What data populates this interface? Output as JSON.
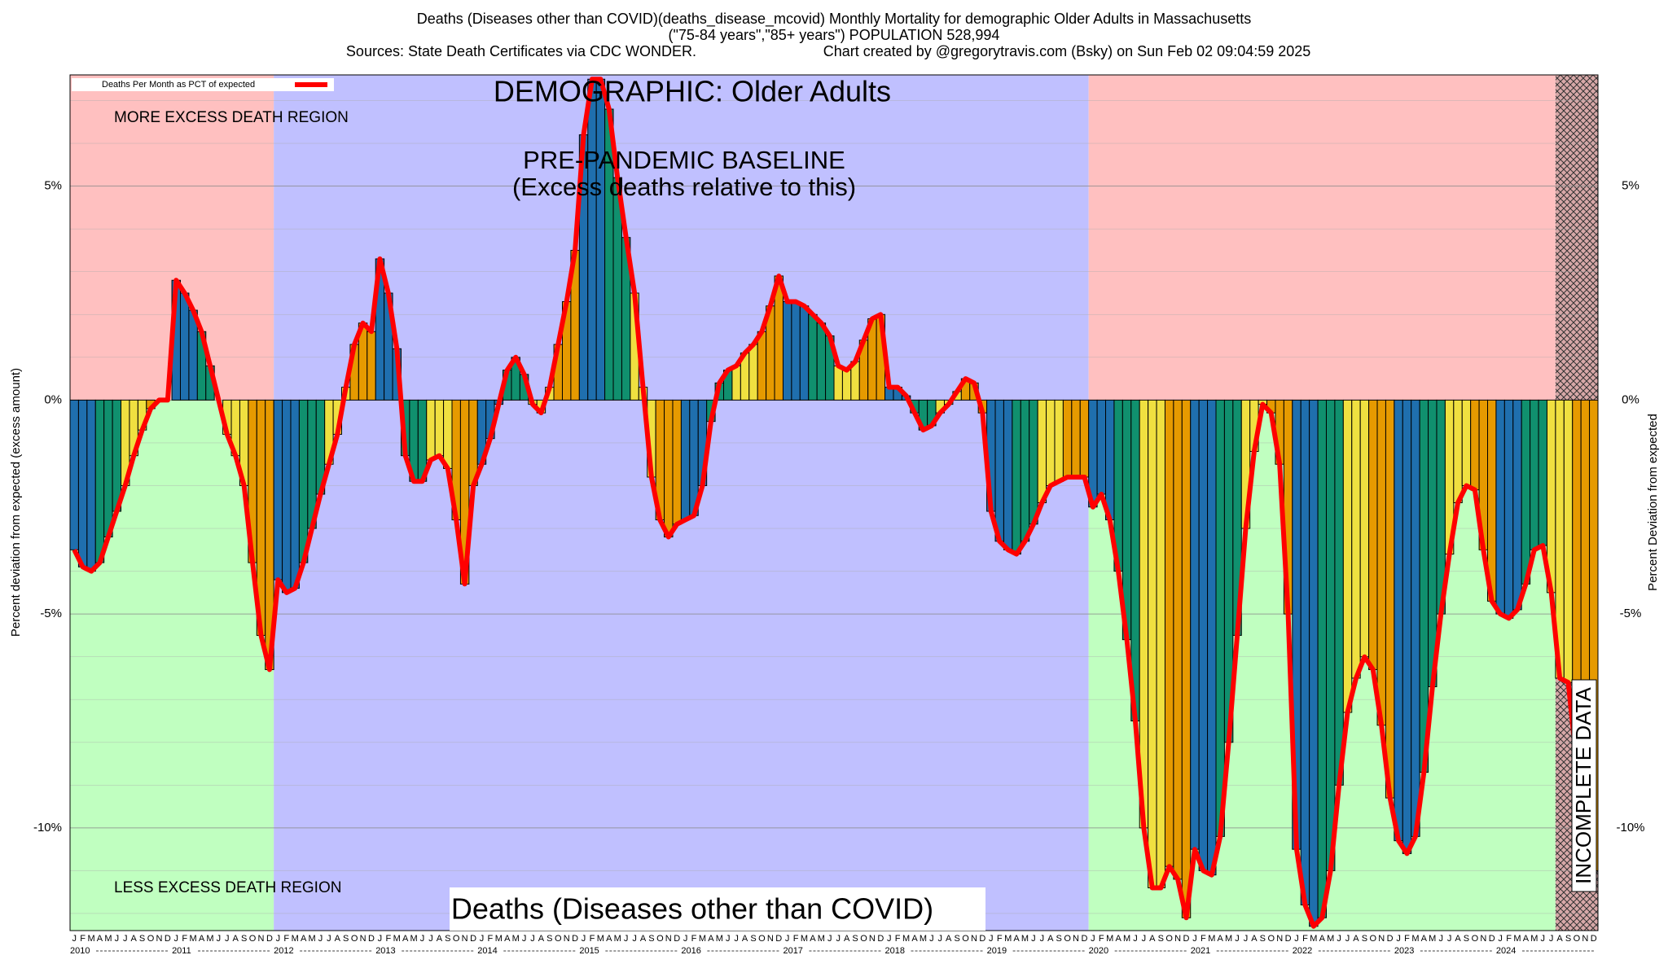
{
  "chart_data": {
    "type": "bar",
    "title": "Deaths (Diseases other than COVID)(deaths_disease_mcovid) Monthly Mortality for demographic Older Adults in Massachusetts",
    "subtitle": "(\"75-84 years\",\"85+ years\") POPULATION 528,994",
    "sources": "Sources: State Death Certificates via CDC WONDER.",
    "credit": "Chart created by @gregorytravis.com (Bsky) on Sun Feb 02 09:04:59 2025",
    "demographic": "DEMOGRAPHIC: Older Adults",
    "baseline_label": "PRE-PANDEMIC BASELINE",
    "baseline_note": "(Excess deaths relative to this)",
    "more_region": "MORE EXCESS DEATH REGION",
    "less_region": "LESS EXCESS DEATH REGION",
    "cause_label": "Deaths (Diseases other than COVID)",
    "incomplete_label": "INCOMPLETE DATA",
    "y_label": "Percent deviation from expected (excess amount)",
    "y2_label": "Percent Deviation from expected",
    "month_labels": [
      "J",
      "F",
      "M",
      "A",
      "M",
      "J",
      "J",
      "A",
      "S",
      "O",
      "N",
      "D"
    ],
    "years": [
      "2010",
      "2011",
      "2012",
      "2013",
      "2014",
      "2015",
      "2016",
      "2017",
      "2018",
      "2019",
      "2020",
      "2021",
      "2022",
      "2023",
      "2024"
    ],
    "bar_colors": [
      "#1f6fae",
      "#10906e",
      "#f0e040",
      "#e69a00"
    ],
    "series": [
      {
        "name": "Deaths Per Month as PCT of expected",
        "color": "#ff0000",
        "values": [
          -3.5,
          -3.9,
          -4.0,
          -3.8,
          -3.2,
          -2.6,
          -2.0,
          -1.3,
          -0.7,
          -0.2,
          0.0,
          0.0,
          2.8,
          2.5,
          2.1,
          1.6,
          0.8,
          0.0,
          -0.8,
          -1.3,
          -2.0,
          -3.8,
          -5.5,
          -6.3,
          -4.2,
          -4.5,
          -4.4,
          -3.8,
          -3.0,
          -2.2,
          -1.5,
          -0.8,
          0.3,
          1.3,
          1.8,
          1.6,
          3.3,
          2.5,
          1.2,
          -1.3,
          -1.9,
          -1.9,
          -1.4,
          -1.3,
          -1.6,
          -2.8,
          -4.3,
          -2.0,
          -1.5,
          -0.9,
          -0.1,
          0.7,
          1.0,
          0.6,
          -0.1,
          -0.3,
          0.3,
          1.3,
          2.3,
          3.5,
          6.2,
          7.5,
          7.5,
          6.8,
          5.2,
          3.8,
          2.5,
          0.3,
          -1.8,
          -2.8,
          -3.2,
          -2.9,
          -2.8,
          -2.7,
          -2.0,
          -0.5,
          0.4,
          0.7,
          0.8,
          1.1,
          1.3,
          1.6,
          2.2,
          2.9,
          2.3,
          2.3,
          2.2,
          2.0,
          1.8,
          1.5,
          0.8,
          0.7,
          0.9,
          1.4,
          1.9,
          2.0,
          0.3,
          0.3,
          0.1,
          -0.3,
          -0.7,
          -0.6,
          -0.3,
          -0.1,
          0.2,
          0.5,
          0.4,
          -0.3,
          -2.6,
          -3.3,
          -3.5,
          -3.6,
          -3.3,
          -2.9,
          -2.4,
          -2.0,
          -1.9,
          -1.8,
          -1.8,
          -1.8,
          -2.5,
          -2.2,
          -2.8,
          -4.0,
          -5.6,
          -7.5,
          -10.0,
          -11.4,
          -11.4,
          -10.9,
          -11.2,
          -12.1,
          -10.5,
          -11.0,
          -11.1,
          -10.2,
          -8.0,
          -5.5,
          -3.0,
          -1.2,
          -0.1,
          -0.3,
          -1.5,
          -5.0,
          -10.5,
          -11.8,
          -12.3,
          -12.1,
          -11.0,
          -9.0,
          -7.3,
          -6.5,
          -6.0,
          -6.3,
          -7.6,
          -9.3,
          -10.3,
          -10.6,
          -10.2,
          -8.7,
          -6.7,
          -5.0,
          -3.6,
          -2.4,
          -2.0,
          -2.1,
          -3.5,
          -4.7,
          -5.0,
          -5.1,
          -4.9,
          -4.3,
          -3.5,
          -3.4,
          -4.5,
          -6.5,
          -6.6,
          -8.5,
          -10.5,
          -11.0
        ]
      }
    ],
    "ylim": [
      -12.4,
      7.6
    ],
    "yticks": [
      {
        "value": 5,
        "label": "5%"
      },
      {
        "value": 0,
        "label": "0%"
      },
      {
        "value": -5,
        "label": "-5%"
      },
      {
        "value": -10,
        "label": "-10%"
      }
    ],
    "grid": true
  }
}
